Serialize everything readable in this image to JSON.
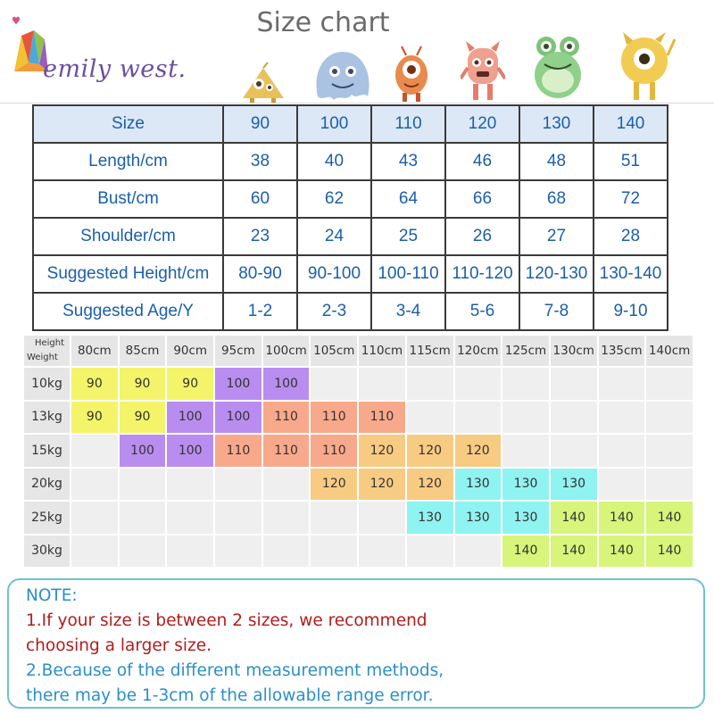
{
  "header": {
    "brand": "emily west.",
    "title": "Size chart"
  },
  "size_table": {
    "columns": [
      "Size",
      "90",
      "100",
      "110",
      "120",
      "130",
      "140"
    ],
    "rows": [
      {
        "label": "Length/cm",
        "values": [
          "38",
          "40",
          "43",
          "46",
          "48",
          "51"
        ]
      },
      {
        "label": "Bust/cm",
        "values": [
          "60",
          "62",
          "64",
          "66",
          "68",
          "72"
        ]
      },
      {
        "label": "Shoulder/cm",
        "values": [
          "23",
          "24",
          "25",
          "26",
          "27",
          "28"
        ]
      },
      {
        "label": "Suggested Height/cm",
        "values": [
          "80-90",
          "90-100",
          "100-110",
          "110-120",
          "120-130",
          "130-140"
        ]
      },
      {
        "label": "Suggested Age/Y",
        "values": [
          "1-2",
          "2-3",
          "3-4",
          "5-6",
          "7-8",
          "9-10"
        ]
      }
    ]
  },
  "fit_grid": {
    "corner_height_label": "Height",
    "corner_weight_label": "Weight",
    "heights": [
      "80cm",
      "85cm",
      "90cm",
      "95cm",
      "100cm",
      "105cm",
      "110cm",
      "115cm",
      "120cm",
      "125cm",
      "130cm",
      "135cm",
      "140cm"
    ],
    "rows": [
      {
        "weight": "10kg",
        "cells": [
          "90",
          "90",
          "90",
          "100",
          "100",
          "",
          "",
          "",
          "",
          "",
          "",
          "",
          ""
        ]
      },
      {
        "weight": "13kg",
        "cells": [
          "90",
          "90",
          "100",
          "100",
          "110",
          "110",
          "110",
          "",
          "",
          "",
          "",
          "",
          ""
        ]
      },
      {
        "weight": "15kg",
        "cells": [
          "",
          "100",
          "100",
          "110",
          "110",
          "110",
          "120",
          "120",
          "120",
          "",
          "",
          "",
          ""
        ]
      },
      {
        "weight": "20kg",
        "cells": [
          "",
          "",
          "",
          "",
          "",
          "120",
          "120",
          "120",
          "130",
          "130",
          "130",
          "",
          ""
        ]
      },
      {
        "weight": "25kg",
        "cells": [
          "",
          "",
          "",
          "",
          "",
          "",
          "",
          "130",
          "130",
          "130",
          "140",
          "140",
          "140"
        ]
      },
      {
        "weight": "30kg",
        "cells": [
          "",
          "",
          "",
          "",
          "",
          "",
          "",
          "",
          "",
          "140",
          "140",
          "140",
          "140"
        ]
      }
    ],
    "size_colors": {
      "90": "#f4f46a",
      "100": "#b98df0",
      "110": "#f9a98b",
      "120": "#f8cb82",
      "130": "#8ff3f1",
      "140": "#d6f57a"
    }
  },
  "note": {
    "title": "NOTE:",
    "line1": "1.If your size is between 2 sizes, we recommend",
    "line2": "choosing a larger size.",
    "line3": "2.Because of the different measurement methods,",
    "line4": "there may be 1-3cm of the allowable range error."
  }
}
